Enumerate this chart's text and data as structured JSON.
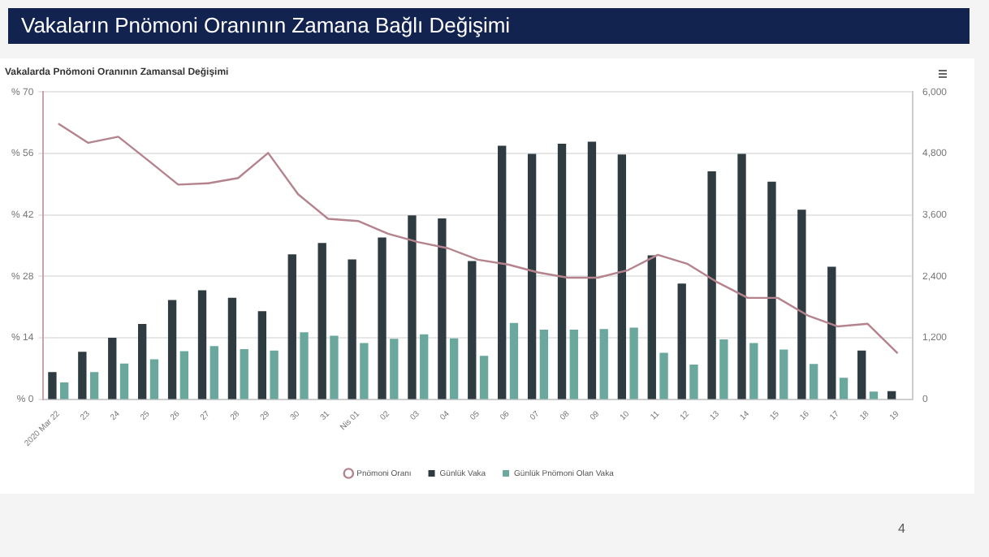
{
  "chart_data": {
    "type": "bar",
    "title": "Vakaların Pnömoni Oranının Zamana Bağlı Değişimi",
    "subtitle": "Vakalarda Pnömoni Oranının Zamansal Değişimi",
    "categories": [
      "2020 Mar 22",
      "23",
      "24",
      "25",
      "26",
      "27",
      "28",
      "29",
      "30",
      "31",
      "Nis 01",
      "02",
      "03",
      "04",
      "05",
      "06",
      "07",
      "08",
      "09",
      "10",
      "11",
      "12",
      "13",
      "14",
      "15",
      "16",
      "17",
      "18",
      "19"
    ],
    "series": [
      {
        "name": "Pnömoni Oranı",
        "type": "line",
        "axis": "y",
        "color": "#b5838d",
        "values": [
          62.8,
          58.4,
          59.8,
          54.4,
          48.9,
          49.2,
          50.4,
          56.1,
          46.7,
          41.1,
          40.6,
          37.7,
          35.8,
          34.4,
          31.8,
          30.7,
          28.9,
          27.7,
          27.7,
          29.4,
          32.9,
          30.8,
          26.6,
          23.1,
          23.1,
          19.1,
          16.6,
          17.2,
          10.5
        ]
      },
      {
        "name": "Günlük Vaka",
        "axis": "y2",
        "color": "#2e3b40",
        "values": [
          530,
          930,
          1200,
          1470,
          1940,
          2130,
          1980,
          1720,
          2830,
          3050,
          2730,
          3160,
          3590,
          3530,
          2700,
          4950,
          4790,
          4990,
          5030,
          4780,
          2810,
          2260,
          4450,
          4790,
          4250,
          3700,
          2590,
          950,
          160
        ]
      },
      {
        "name": "Günlük Pnömoni Olan Vaka",
        "axis": "y2",
        "color": "#6aa89e",
        "values": [
          330,
          530,
          700,
          780,
          940,
          1040,
          980,
          950,
          1310,
          1240,
          1100,
          1180,
          1270,
          1190,
          850,
          1490,
          1360,
          1360,
          1370,
          1400,
          910,
          680,
          1170,
          1100,
          970,
          690,
          420,
          150,
          null
        ]
      }
    ],
    "ylim": [
      0,
      70
    ],
    "yticks": [
      {
        "value": 0,
        "label": "% 0"
      },
      {
        "value": 14,
        "label": "% 14"
      },
      {
        "value": 28,
        "label": "% 28"
      },
      {
        "value": 42,
        "label": "% 42"
      },
      {
        "value": 56,
        "label": "% 56"
      },
      {
        "value": 70,
        "label": "% 70"
      }
    ],
    "y2lim": [
      0,
      6000
    ],
    "y2ticks": [
      {
        "value": 0,
        "label": "0"
      },
      {
        "value": 1200,
        "label": "1,200"
      },
      {
        "value": 2400,
        "label": "2,400"
      },
      {
        "value": 3600,
        "label": "3,600"
      },
      {
        "value": 4800,
        "label": "4,800"
      },
      {
        "value": 6000,
        "label": "6,000"
      }
    ],
    "grid": "y",
    "legend": "bottom",
    "annotations": [
      "4"
    ]
  }
}
